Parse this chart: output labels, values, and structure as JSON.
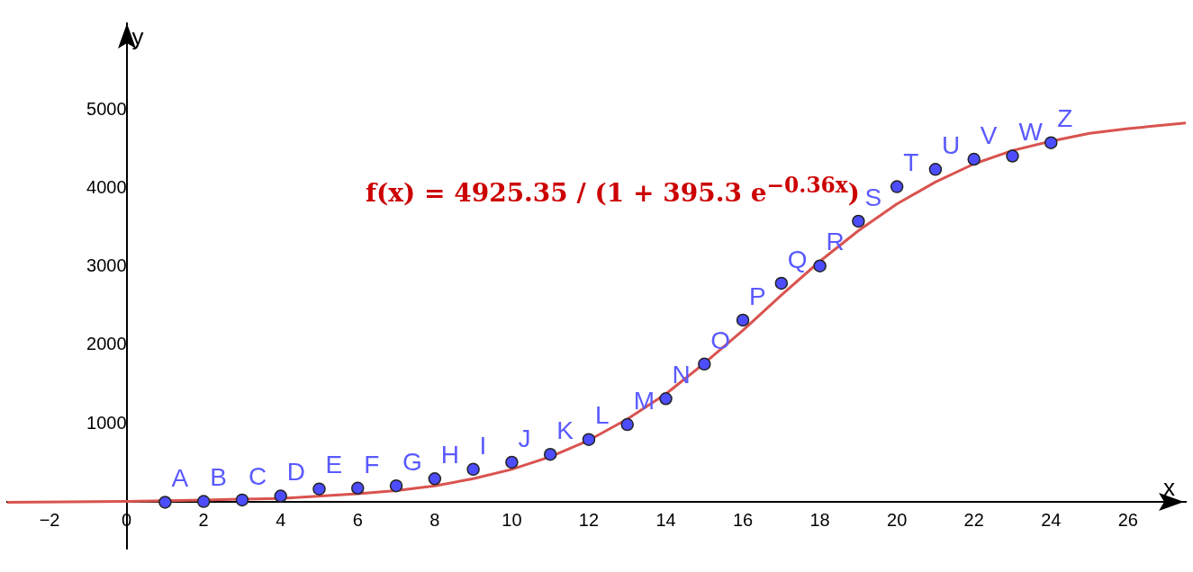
{
  "chart_data": {
    "type": "scatter",
    "xlabel": "x",
    "ylabel": "y",
    "xlim": [
      -3.1,
      27.5
    ],
    "xticks": [
      -2,
      0,
      2,
      4,
      6,
      8,
      10,
      12,
      14,
      16,
      18,
      20,
      22,
      24,
      26
    ],
    "ylim": [
      -590,
      6100
    ],
    "yticks": [
      1000,
      2000,
      3000,
      4000,
      5000
    ],
    "grid": false,
    "series": [
      {
        "type": "line",
        "color": "#d9534f",
        "marker": "none",
        "line_style": "solid",
        "x": [
          -3.1,
          0,
          2,
          4,
          6,
          7,
          8,
          9,
          10,
          11,
          12,
          13,
          14,
          15,
          16,
          17,
          18,
          19,
          20,
          21,
          22,
          23,
          24,
          25,
          26,
          27.5
        ],
        "values": [
          0,
          10,
          30,
          50,
          110,
          150,
          210,
          300,
          420,
          580,
          790,
          1060,
          1380,
          1770,
          2190,
          2640,
          3070,
          3460,
          3800,
          4080,
          4310,
          4480,
          4600,
          4700,
          4760,
          4830
        ]
      },
      {
        "type": "scatter",
        "color": "#4d4dff",
        "marker": "circle",
        "x": [
          1,
          2,
          3,
          4,
          5,
          6,
          7,
          8,
          9,
          10,
          11,
          12,
          13,
          14,
          15,
          16,
          17,
          18,
          19,
          20,
          21,
          22,
          23,
          24
        ],
        "values": [
          0,
          10,
          30,
          80,
          170,
          180,
          210,
          300,
          420,
          510,
          610,
          800,
          990,
          1320,
          1760,
          2320,
          2790,
          3010,
          3580,
          4020,
          4240,
          4370,
          4410,
          4580
        ]
      }
    ],
    "annotations": [
      "f(x) = 4925.35 / (1 + 395.3 e$^{−0.36x}$)",
      {
        "text": "A",
        "x": 1,
        "y": 0
      },
      {
        "text": "B",
        "x": 2,
        "y": 10
      },
      {
        "text": "C",
        "x": 3,
        "y": 30
      },
      {
        "text": "D",
        "x": 4,
        "y": 80
      },
      {
        "text": "E",
        "x": 5,
        "y": 170
      },
      {
        "text": "F",
        "x": 6,
        "y": 180
      },
      {
        "text": "G",
        "x": 7,
        "y": 210
      },
      {
        "text": "H",
        "x": 8,
        "y": 300
      },
      {
        "text": "I",
        "x": 9,
        "y": 420
      },
      {
        "text": "J",
        "x": 10,
        "y": 510
      },
      {
        "text": "K",
        "x": 11,
        "y": 610
      },
      {
        "text": "L",
        "x": 12,
        "y": 800
      },
      {
        "text": "M",
        "x": 13,
        "y": 990
      },
      {
        "text": "N",
        "x": 14,
        "y": 1320
      },
      {
        "text": "O",
        "x": 15,
        "y": 1760
      },
      {
        "text": "P",
        "x": 16,
        "y": 2320
      },
      {
        "text": "Q",
        "x": 17,
        "y": 2790
      },
      {
        "text": "R",
        "x": 18,
        "y": 3010
      },
      {
        "text": "S",
        "x": 19,
        "y": 3580
      },
      {
        "text": "T",
        "x": 20,
        "y": 4020
      },
      {
        "text": "U",
        "x": 21,
        "y": 4240
      },
      {
        "text": "V",
        "x": 22,
        "y": 4370
      },
      {
        "text": "W",
        "x": 23,
        "y": 4410
      },
      {
        "text": "Z",
        "x": 24,
        "y": 4580
      }
    ]
  }
}
